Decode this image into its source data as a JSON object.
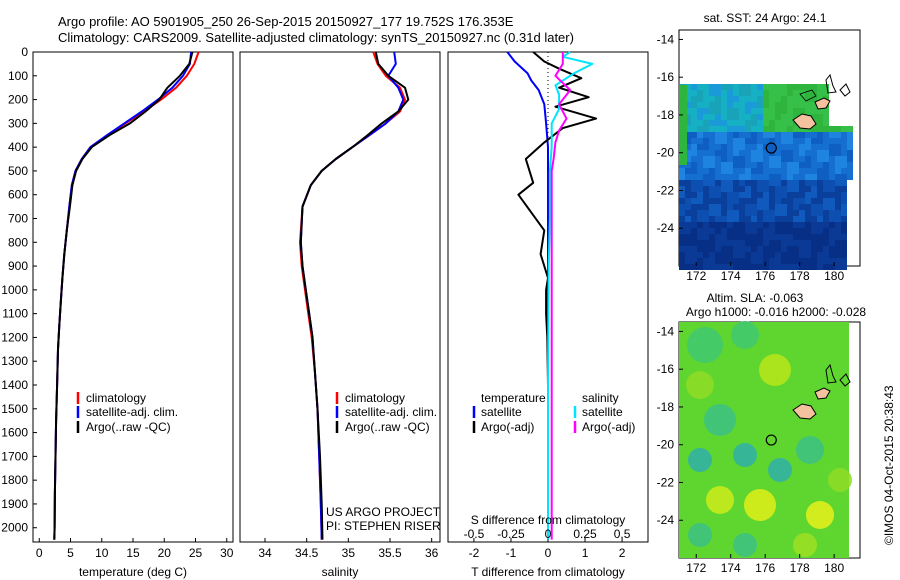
{
  "header": {
    "line1": "Argo profile: AO 5901905_250 26-Sep-2015 20150927_177 19.752S 176.353E",
    "line2": "Climatology: CARS2009. Satellite-adjusted climatology: synTS_20150927.nc (0.31d later)"
  },
  "colors": {
    "climatology": "#ff0000",
    "satellite": "#0000ff",
    "argo": "#000000",
    "sat_cyan": "#00e5ff",
    "argo_magenta": "#ff00ff",
    "land": "#f5c2a0"
  },
  "chart_data": [
    {
      "type": "line",
      "id": "temperature",
      "xlabel": "temperature (deg C)",
      "ylabel": "",
      "xlim": [
        -1,
        31
      ],
      "ylim": [
        2060,
        0
      ],
      "xticks": [
        "0",
        "5",
        "10",
        "15",
        "20",
        "25",
        "30"
      ],
      "xtick_values": [
        0,
        5,
        10,
        15,
        20,
        25,
        30
      ],
      "yticks": [
        "0",
        "100",
        "200",
        "300",
        "400",
        "500",
        "600",
        "700",
        "800",
        "900",
        "1000",
        "1100",
        "1200",
        "1300",
        "1400",
        "1500",
        "1600",
        "1700",
        "1800",
        "1900",
        "2000"
      ],
      "ytick_values": [
        0,
        100,
        200,
        300,
        400,
        500,
        600,
        700,
        800,
        900,
        1000,
        1100,
        1200,
        1300,
        1400,
        1500,
        1600,
        1700,
        1800,
        1900,
        2000
      ],
      "legend": [
        "climatology",
        "satellite-adj. clim.",
        "Argo(..raw -QC)"
      ],
      "series": [
        {
          "name": "climatology",
          "color": "climatology",
          "x": [
            25.5,
            24.8,
            23.6,
            21.9,
            19.5,
            16.7,
            13.8,
            10.9,
            8.2,
            6.8,
            5.8,
            5.2,
            4.8,
            4.4,
            4.0,
            3.7,
            3.45,
            3.2,
            3.0,
            2.85,
            2.7,
            2.6,
            2.5,
            2.45,
            2.4
          ],
          "y": [
            0,
            50,
            100,
            150,
            200,
            250,
            300,
            350,
            400,
            450,
            500,
            560,
            650,
            750,
            850,
            950,
            1050,
            1150,
            1250,
            1400,
            1550,
            1700,
            1850,
            2000,
            2050
          ]
        },
        {
          "name": "satellite-adj. clim.",
          "color": "satellite",
          "x": [
            24.3,
            24.1,
            23.0,
            21.3,
            19.0,
            16.4,
            13.6,
            10.8,
            8.2,
            6.8,
            5.8,
            5.2,
            4.8,
            4.4,
            4.0,
            3.7,
            3.45,
            3.2,
            3.0,
            2.85,
            2.7,
            2.6,
            2.5,
            2.45,
            2.4
          ],
          "y": [
            0,
            50,
            100,
            150,
            200,
            250,
            300,
            350,
            400,
            450,
            500,
            560,
            650,
            750,
            850,
            950,
            1050,
            1150,
            1250,
            1400,
            1550,
            1700,
            1850,
            2000,
            2050
          ]
        },
        {
          "name": "Argo(..raw -QC)",
          "color": "argo",
          "x": [
            24.5,
            24.0,
            22.5,
            20.5,
            19.2,
            17.0,
            14.5,
            11.2,
            8.4,
            6.9,
            5.9,
            5.3,
            4.9,
            4.4,
            4.0,
            3.7,
            3.45,
            3.2,
            3.0,
            2.85,
            2.7,
            2.6,
            2.5,
            2.45,
            2.4
          ],
          "y": [
            0,
            50,
            100,
            150,
            200,
            250,
            300,
            350,
            400,
            450,
            500,
            560,
            650,
            750,
            850,
            950,
            1050,
            1150,
            1250,
            1400,
            1550,
            1700,
            1850,
            2000,
            2050
          ]
        }
      ]
    },
    {
      "type": "line",
      "id": "salinity",
      "xlabel": "salinity",
      "ylabel": "",
      "xlim": [
        33.7,
        36.1
      ],
      "ylim": [
        2060,
        0
      ],
      "xticks": [
        "34",
        "34.5",
        "35",
        "35.5",
        "36"
      ],
      "xtick_values": [
        34,
        34.5,
        35,
        35.5,
        36
      ],
      "legend": [
        "climatology",
        "satellite-adj. clim.",
        "Argo(..raw -QC)"
      ],
      "annotation": [
        "US ARGO PROJECT",
        "PI: STEPHEN RISER"
      ],
      "series": [
        {
          "name": "climatology",
          "color": "climatology",
          "x": [
            35.3,
            35.35,
            35.45,
            35.62,
            35.68,
            35.62,
            35.45,
            35.25,
            35.05,
            34.85,
            34.68,
            34.55,
            34.45,
            34.42,
            34.44,
            34.48,
            34.52,
            34.56,
            34.6,
            34.63,
            34.65,
            34.67,
            34.68
          ],
          "y": [
            0,
            50,
            100,
            150,
            200,
            250,
            300,
            350,
            400,
            450,
            500,
            560,
            650,
            800,
            900,
            1000,
            1100,
            1200,
            1350,
            1500,
            1700,
            1900,
            2050
          ]
        },
        {
          "name": "satellite-adj. clim.",
          "color": "satellite",
          "x": [
            35.55,
            35.57,
            35.48,
            35.6,
            35.66,
            35.6,
            35.45,
            35.25,
            35.05,
            34.85,
            34.68,
            34.55,
            34.45,
            34.43,
            34.45,
            34.49,
            34.53,
            34.57,
            34.6,
            34.63,
            34.65,
            34.67,
            34.68
          ],
          "y": [
            0,
            50,
            100,
            150,
            200,
            250,
            300,
            350,
            400,
            450,
            500,
            560,
            650,
            800,
            900,
            1000,
            1100,
            1200,
            1350,
            1500,
            1700,
            1900,
            2050
          ]
        },
        {
          "name": "Argo(..raw -QC)",
          "color": "argo",
          "x": [
            35.33,
            35.36,
            35.48,
            35.68,
            35.72,
            35.6,
            35.4,
            35.23,
            35.05,
            34.85,
            34.68,
            34.55,
            34.45,
            34.43,
            34.45,
            34.49,
            34.53,
            34.57,
            34.6,
            34.63,
            34.66,
            34.68,
            34.69
          ],
          "y": [
            0,
            50,
            100,
            150,
            200,
            250,
            300,
            350,
            400,
            450,
            500,
            560,
            650,
            800,
            900,
            1000,
            1100,
            1200,
            1350,
            1500,
            1700,
            1900,
            2050
          ]
        }
      ]
    },
    {
      "type": "line",
      "id": "differences",
      "xlabel": "T difference from climatology",
      "x2label": "S difference from climatology",
      "xlim": [
        -2.7,
        2.7
      ],
      "ylim": [
        2060,
        0
      ],
      "xticks": [
        "-2",
        "-1",
        "0",
        "1",
        "2"
      ],
      "xtick_values": [
        -2,
        -1,
        0,
        1,
        2
      ],
      "x2ticks": [
        "-0.5",
        "-0.25",
        "0",
        "0.25",
        "0.5"
      ],
      "x2tick_positions": [
        -2,
        -1,
        0,
        1,
        2
      ],
      "legend_titles": [
        "temperature",
        "salinity"
      ],
      "legend": [
        "satellite",
        "Argo(-adj)",
        "satellite",
        "Argo(-adj)"
      ],
      "series": [
        {
          "name": "satellite",
          "color": "satellite",
          "x": [
            -1.1,
            -0.9,
            -0.55,
            -0.45,
            -0.25,
            -0.1,
            -0.05,
            0,
            0,
            0,
            0,
            0
          ],
          "y": [
            0,
            40,
            90,
            120,
            160,
            220,
            300,
            400,
            600,
            900,
            1400,
            2050
          ]
        },
        {
          "name": "Argo(-adj)",
          "color": "argo",
          "x": [
            -0.4,
            -0.1,
            0.3,
            0.9,
            0.3,
            1.1,
            0.2,
            1.3,
            0.4,
            -0.1,
            -0.6,
            -0.4,
            -0.8,
            -0.1,
            -0.2,
            0.0,
            -0.05,
            -0.05,
            -0.02,
            0,
            0,
            0,
            0
          ],
          "y": [
            0,
            40,
            70,
            110,
            150,
            190,
            230,
            280,
            320,
            380,
            450,
            550,
            600,
            750,
            850,
            950,
            1000,
            1100,
            1200,
            1400,
            1600,
            1800,
            2050
          ]
        },
        {
          "name": "satellite",
          "color": "sat_cyan",
          "x": [
            0.6,
            0.4,
            1.2,
            0.7,
            0.2,
            0.3,
            0.3,
            0.1,
            0.1,
            0.05,
            0.05,
            0.02,
            0,
            0
          ],
          "y": [
            0,
            20,
            50,
            90,
            140,
            180,
            240,
            300,
            400,
            500,
            700,
            900,
            1400,
            2050
          ]
        },
        {
          "name": "Argo(-adj)",
          "color": "argo_magenta",
          "x": [
            0.4,
            0.4,
            0.2,
            0.6,
            0.3,
            0.5,
            0.3,
            0.2,
            0.15,
            0.1,
            0.1,
            0.1,
            0.1,
            0.1,
            0.1,
            0.1
          ],
          "y": [
            0,
            50,
            100,
            160,
            220,
            280,
            330,
            380,
            450,
            500,
            600,
            700,
            800,
            1000,
            1500,
            2050
          ]
        }
      ]
    }
  ],
  "map_sst": {
    "title": "sat. SST: 24 Argo: 24.1",
    "yticks": [
      "-14",
      "-16",
      "-18",
      "-20",
      "-22",
      "-24"
    ],
    "ytick_values": [
      -14,
      -16,
      -18,
      -20,
      -22,
      -24
    ],
    "xticks": [
      "172",
      "174",
      "176",
      "178",
      "180"
    ],
    "xtick_values": [
      172,
      174,
      176,
      178,
      180
    ],
    "lon_range": [
      171,
      181.5
    ],
    "lat_range": [
      -13.5,
      -26
    ],
    "profile_lon": 176.353,
    "profile_lat": -19.752
  },
  "map_sla": {
    "title1": "Altim. SLA: -0.063",
    "title2": "Argo h1000: -0.016 h2000: -0.028",
    "yticks": [
      "-14",
      "-16",
      "-18",
      "-20",
      "-22",
      "-24"
    ],
    "ytick_values": [
      -14,
      -16,
      -18,
      -20,
      -22,
      -24
    ],
    "xticks": [
      "172",
      "174",
      "176",
      "178",
      "180"
    ],
    "xtick_values": [
      172,
      174,
      176,
      178,
      180
    ],
    "lon_range": [
      171,
      181.5
    ],
    "lat_range": [
      -13.5,
      -26
    ],
    "profile_lon": 176.353,
    "profile_lat": -19.752
  },
  "footer": {
    "imos": "©IMOS 04-Oct-2015 20:38:43"
  }
}
